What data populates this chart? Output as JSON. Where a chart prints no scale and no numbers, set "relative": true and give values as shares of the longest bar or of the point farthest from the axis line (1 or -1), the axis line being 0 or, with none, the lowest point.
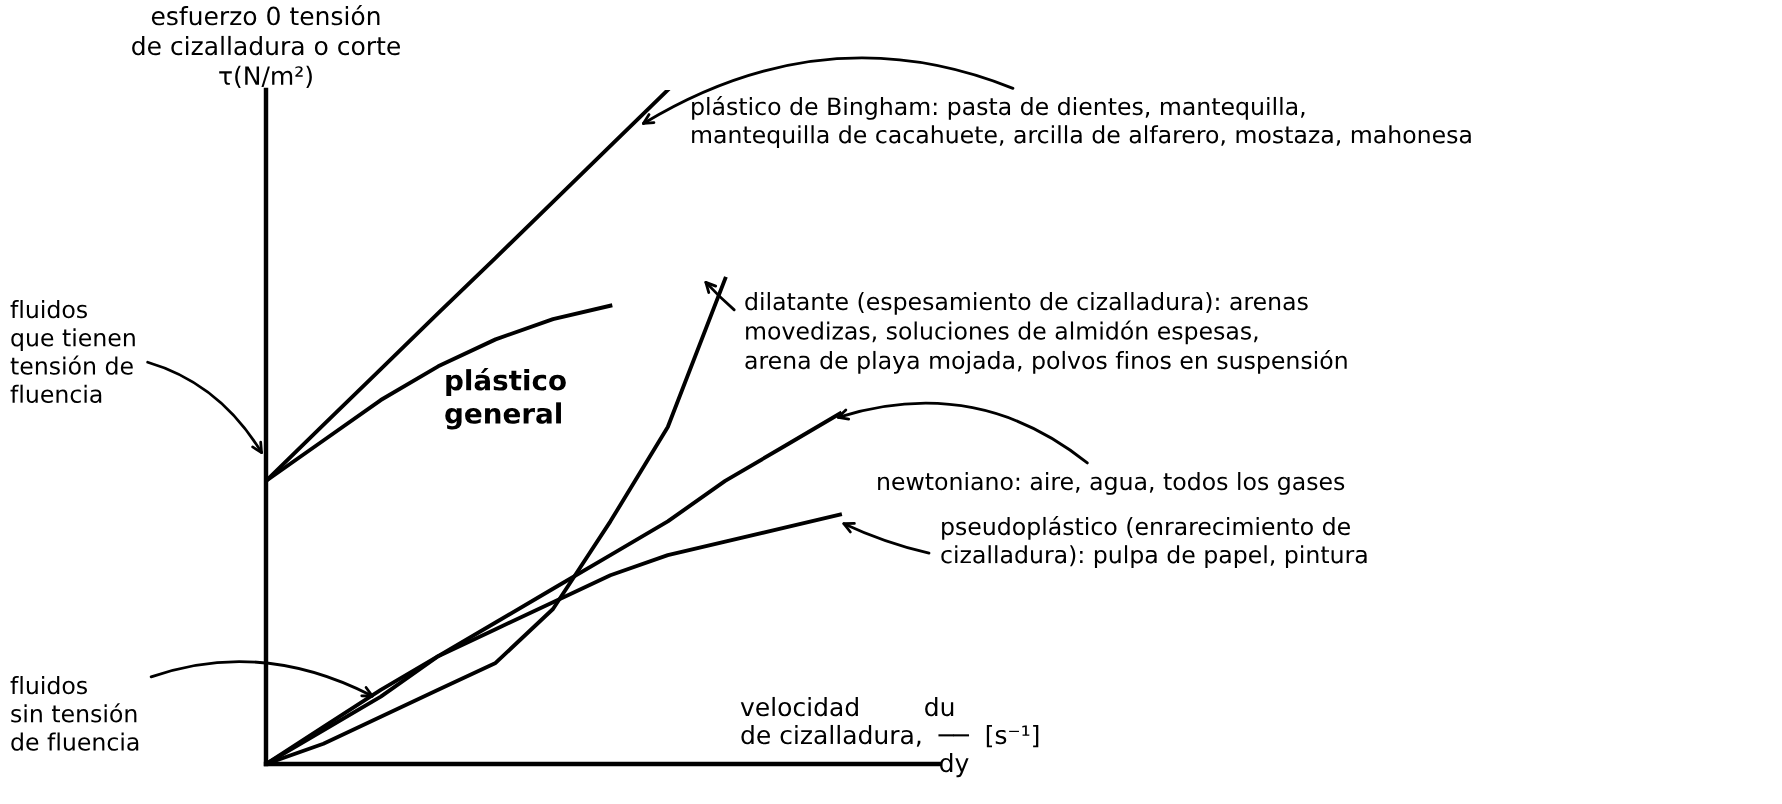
{
  "chart_data": {
    "type": "line",
    "relative": true,
    "tick_labels": false,
    "legend": false,
    "marker": "none",
    "line_style": "solid",
    "ylabel": "esfuerzo 0 tensión\nde cizalladura o corte\nτ(N/m²)",
    "xlabel": "velocidad        du\nde cizalladura,  ──  [s⁻¹]\n                         dy",
    "categories": [
      null,
      null,
      null,
      null,
      null,
      null,
      null,
      null,
      null,
      null,
      null
    ],
    "series": [
      {
        "color": "#000000",
        "values": [
          0.42,
          0.503,
          0.586,
          0.669,
          0.751,
          0.834,
          0.917,
          1.0,
          null,
          null,
          null
        ]
      },
      {
        "color": "#000000",
        "values": [
          0.42,
          0.48,
          0.54,
          0.59,
          0.63,
          0.66,
          0.68,
          null,
          null,
          null,
          null
        ]
      },
      {
        "color": "#000000",
        "values": [
          0,
          0.03,
          0.07,
          0.11,
          0.15,
          0.23,
          0.36,
          0.5,
          0.72,
          null,
          null
        ]
      },
      {
        "color": "#000000",
        "values": [
          0,
          0.05,
          0.1,
          0.16,
          0.21,
          0.26,
          0.31,
          0.36,
          0.42,
          0.47,
          0.52
        ]
      },
      {
        "color": "#000000",
        "values": [
          0,
          0.055,
          0.11,
          0.16,
          0.2,
          0.24,
          0.28,
          0.31,
          0.33,
          0.35,
          0.37
        ]
      }
    ],
    "annotations": [
      "plástico de Bingham: pasta de dientes, mantequilla,\nmantequilla de cacahuete, arcilla de alfarero, mostaza, mahonesa",
      "plástico\ngeneral",
      "dilatante (espesamiento de cizalladura): arenas\nmovedizas, soluciones de almidón espesas,\narena de playa mojada, polvos finos en suspensión",
      "newtoniano: aire, agua, todos los gases",
      "pseudoplástico (enrarecimiento de\ncizalladura): pulpa de papel, pintura",
      "fluidos\nque tienen\ntensión de\nfluencia",
      "fluidos\nsin tensión\nde fluencia"
    ]
  }
}
